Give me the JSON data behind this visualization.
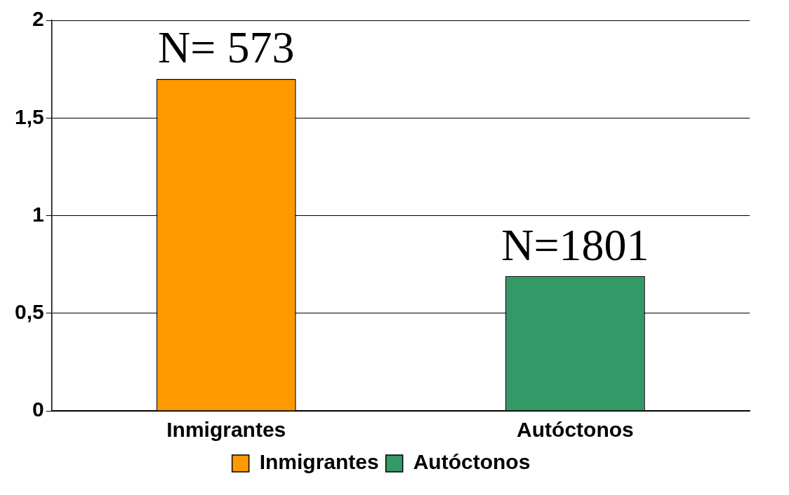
{
  "chart_data": {
    "type": "bar",
    "categories": [
      "Inmigrantes",
      "Autóctonos"
    ],
    "series": [
      {
        "name": "Inmigrantes",
        "color": "#ff9900",
        "values": [
          1.7,
          null
        ]
      },
      {
        "name": "Autóctonos",
        "color": "#339966",
        "values": [
          null,
          0.69
        ]
      }
    ],
    "ylim": [
      0,
      2
    ],
    "yticks": [
      0,
      {
        "value": 0.5,
        "label": "0,5"
      },
      1,
      {
        "value": 1.5,
        "label": "1,5"
      },
      2
    ],
    "grid": "y",
    "legend": "bottom",
    "annotations": [
      {
        "text": "N= 573",
        "x": "Inmigrantes",
        "y": 1.7
      },
      {
        "text": "N=1801",
        "x": "Autóctonos",
        "y": 0.69
      }
    ]
  }
}
